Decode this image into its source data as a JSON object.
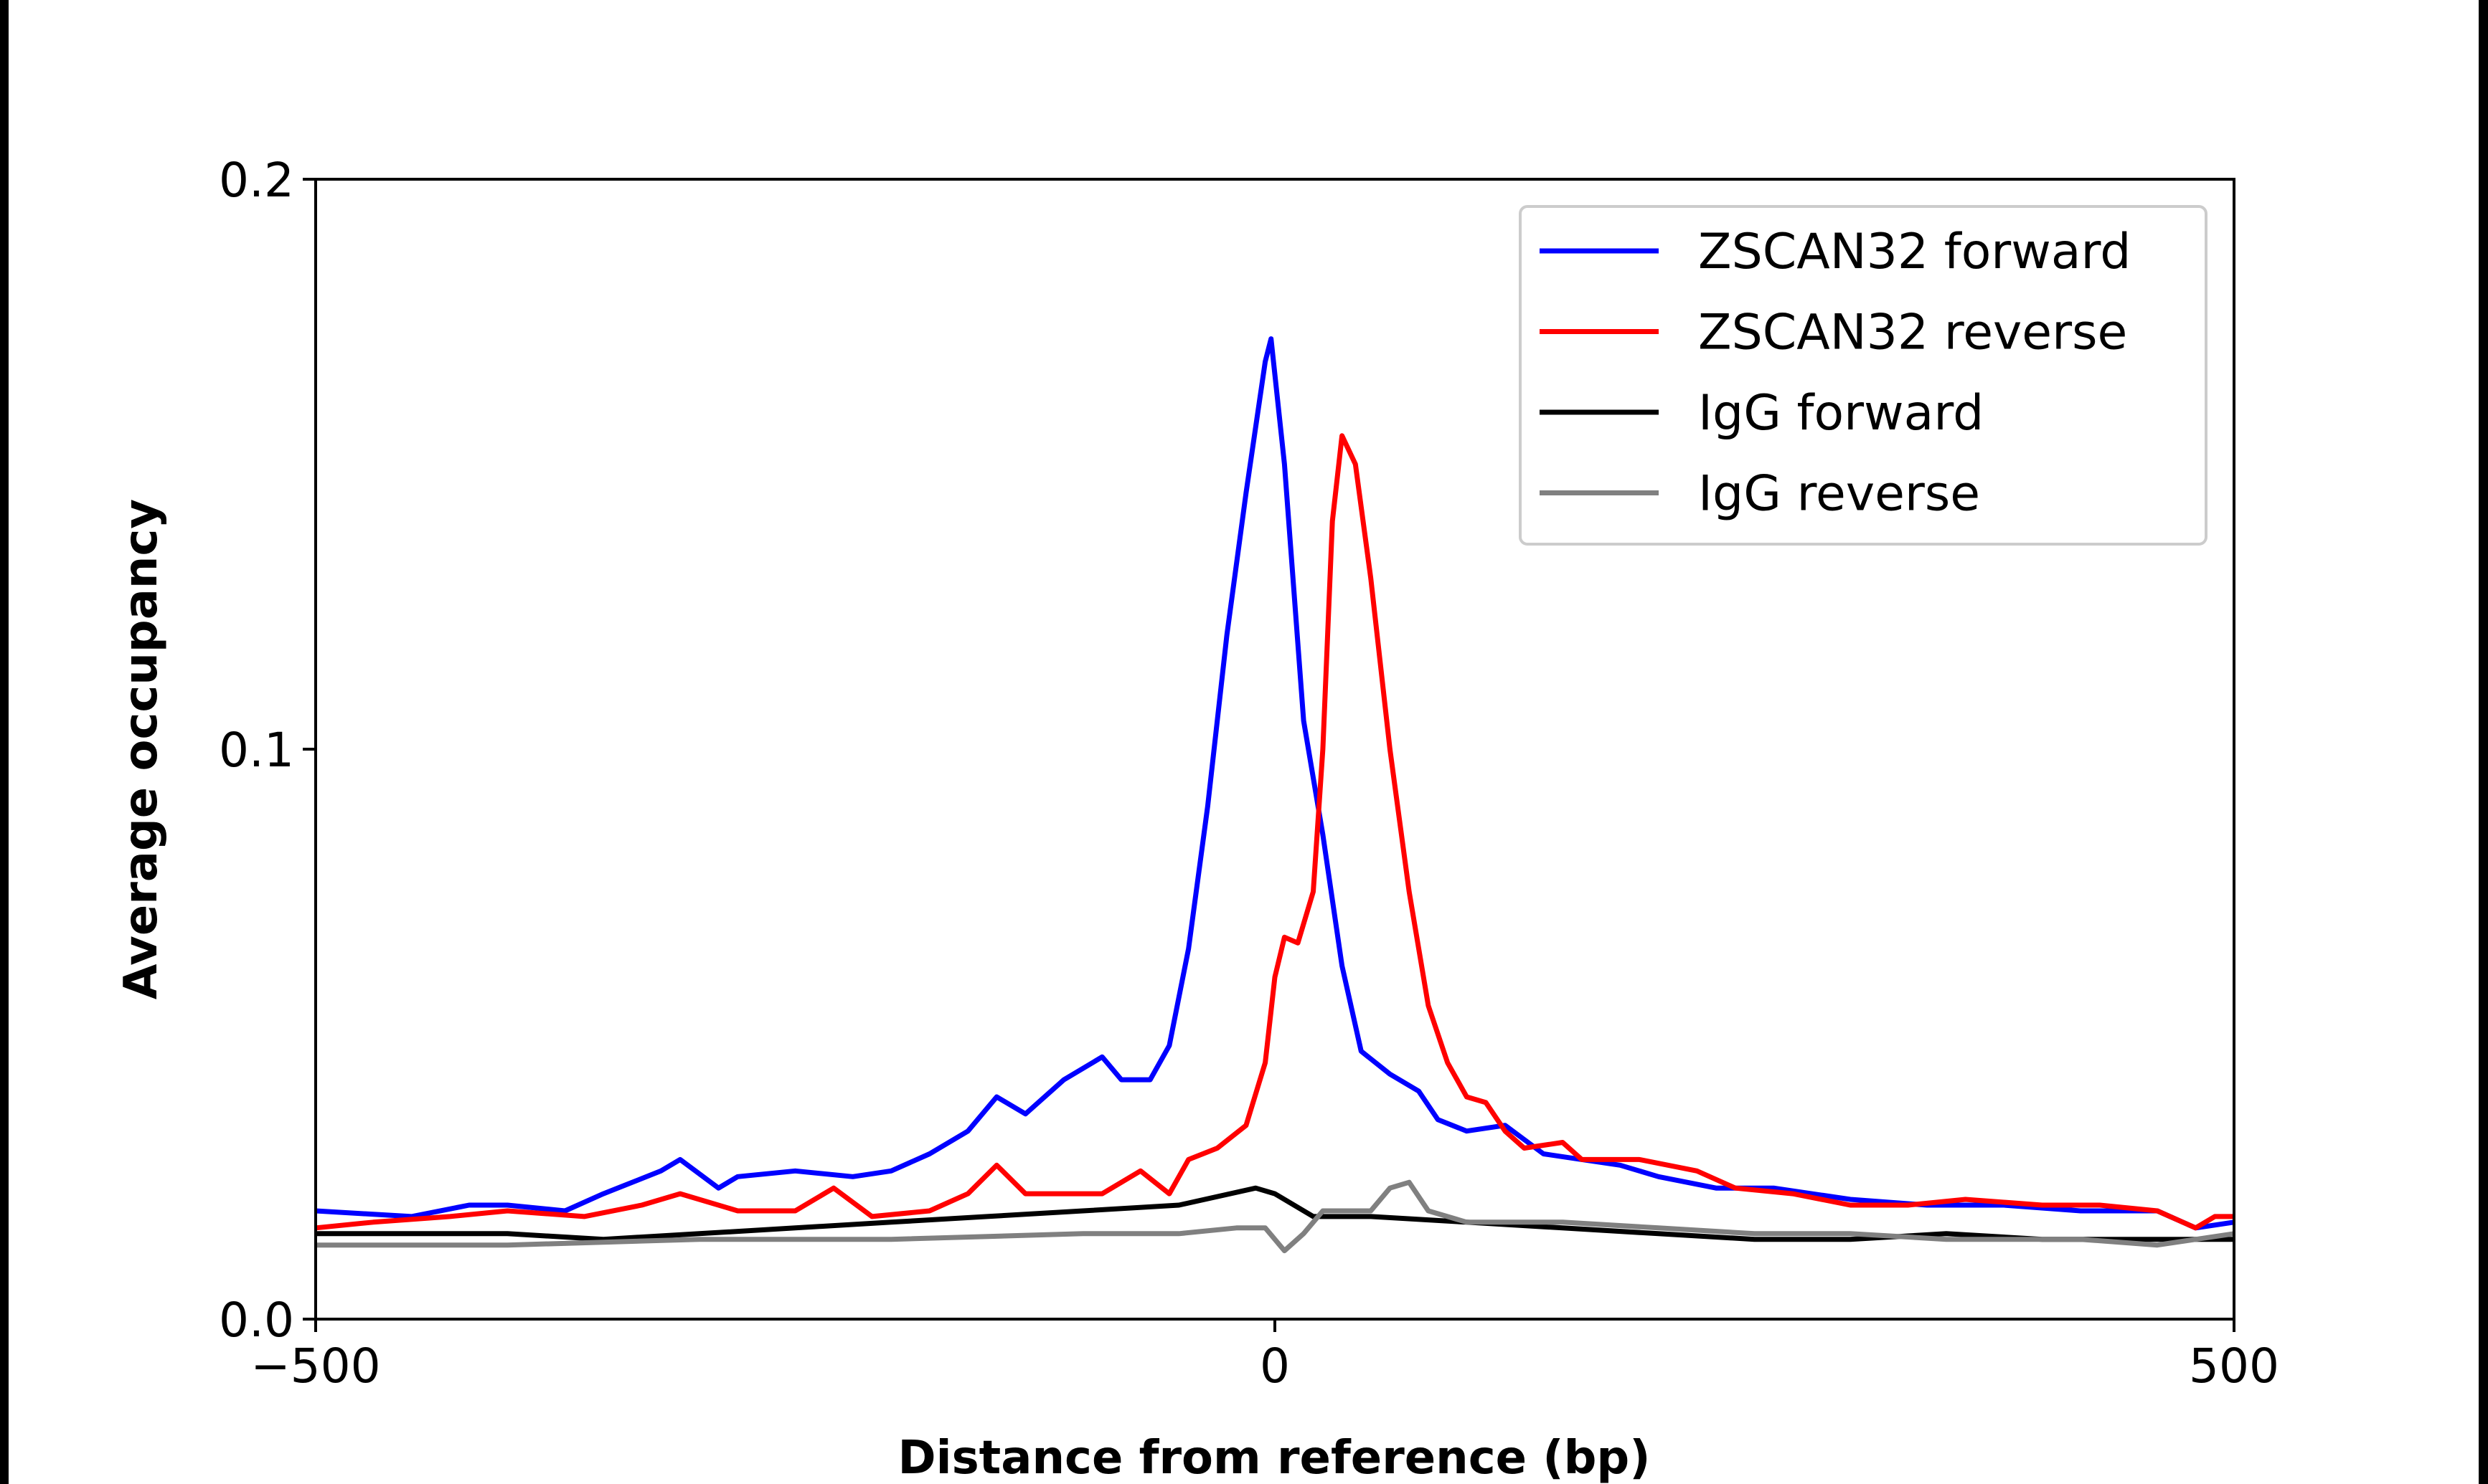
{
  "chart_data": {
    "type": "line",
    "title": "",
    "xlabel": "Distance from reference (bp)",
    "ylabel": "Average occupancy",
    "xlim": [
      -500,
      500
    ],
    "ylim": [
      0.0,
      0.2
    ],
    "xticks": [
      -500,
      0,
      500
    ],
    "xtick_labels": [
      "−500",
      "0",
      "500"
    ],
    "yticks": [
      0.0,
      0.1,
      0.2
    ],
    "ytick_labels": [
      "0.0",
      "0.1",
      "0.2"
    ],
    "grid": false,
    "legend_position": "top-right",
    "series": [
      {
        "name": "ZSCAN32 forward",
        "color": "#0000ff",
        "x": [
          -500,
          -450,
          -420,
          -400,
          -370,
          -350,
          -320,
          -310,
          -290,
          -280,
          -250,
          -220,
          -200,
          -180,
          -160,
          -145,
          -130,
          -110,
          -90,
          -80,
          -65,
          -55,
          -45,
          -35,
          -25,
          -15,
          -5,
          -2,
          5,
          15,
          25,
          35,
          45,
          60,
          75,
          85,
          100,
          120,
          140,
          160,
          180,
          200,
          230,
          260,
          300,
          340,
          380,
          420,
          460,
          480,
          500
        ],
        "y": [
          0.019,
          0.018,
          0.02,
          0.02,
          0.019,
          0.022,
          0.026,
          0.028,
          0.023,
          0.025,
          0.026,
          0.025,
          0.026,
          0.029,
          0.033,
          0.039,
          0.036,
          0.042,
          0.046,
          0.042,
          0.042,
          0.048,
          0.065,
          0.09,
          0.12,
          0.145,
          0.168,
          0.172,
          0.15,
          0.105,
          0.085,
          0.062,
          0.047,
          0.043,
          0.04,
          0.035,
          0.033,
          0.034,
          0.029,
          0.028,
          0.027,
          0.025,
          0.023,
          0.023,
          0.021,
          0.02,
          0.02,
          0.019,
          0.019,
          0.016,
          0.017
        ]
      },
      {
        "name": "ZSCAN32 reverse",
        "color": "#ff0000",
        "x": [
          -500,
          -470,
          -430,
          -400,
          -360,
          -330,
          -310,
          -280,
          -250,
          -230,
          -210,
          -180,
          -160,
          -145,
          -130,
          -110,
          -90,
          -70,
          -55,
          -45,
          -30,
          -15,
          -5,
          0,
          5,
          12,
          20,
          25,
          30,
          35,
          42,
          50,
          60,
          70,
          80,
          90,
          100,
          110,
          120,
          130,
          150,
          160,
          190,
          220,
          240,
          270,
          300,
          330,
          360,
          400,
          430,
          460,
          480,
          490,
          500
        ],
        "y": [
          0.016,
          0.017,
          0.018,
          0.019,
          0.018,
          0.02,
          0.022,
          0.019,
          0.019,
          0.023,
          0.018,
          0.019,
          0.022,
          0.027,
          0.022,
          0.022,
          0.022,
          0.026,
          0.022,
          0.028,
          0.03,
          0.034,
          0.045,
          0.06,
          0.067,
          0.066,
          0.075,
          0.1,
          0.14,
          0.155,
          0.15,
          0.13,
          0.1,
          0.075,
          0.055,
          0.045,
          0.039,
          0.038,
          0.033,
          0.03,
          0.031,
          0.028,
          0.028,
          0.026,
          0.023,
          0.022,
          0.02,
          0.02,
          0.021,
          0.02,
          0.02,
          0.019,
          0.016,
          0.018,
          0.018
        ]
      },
      {
        "name": "IgG forward",
        "color": "#000000",
        "x": [
          -500,
          -400,
          -350,
          -300,
          -250,
          -200,
          -150,
          -100,
          -50,
          -10,
          0,
          20,
          50,
          100,
          150,
          200,
          250,
          300,
          350,
          400,
          450,
          500
        ],
        "y": [
          0.015,
          0.015,
          0.014,
          0.015,
          0.016,
          0.017,
          0.018,
          0.019,
          0.02,
          0.023,
          0.022,
          0.018,
          0.018,
          0.017,
          0.016,
          0.015,
          0.014,
          0.014,
          0.015,
          0.014,
          0.014,
          0.014
        ]
      },
      {
        "name": "IgG reverse",
        "color": "#808080",
        "x": [
          -500,
          -400,
          -300,
          -200,
          -100,
          -50,
          -20,
          -5,
          5,
          15,
          25,
          50,
          60,
          70,
          80,
          100,
          150,
          200,
          250,
          300,
          350,
          420,
          460,
          500
        ],
        "y": [
          0.013,
          0.013,
          0.014,
          0.014,
          0.015,
          0.015,
          0.016,
          0.016,
          0.012,
          0.015,
          0.019,
          0.019,
          0.023,
          0.024,
          0.019,
          0.017,
          0.017,
          0.016,
          0.015,
          0.015,
          0.014,
          0.014,
          0.013,
          0.015
        ]
      }
    ]
  }
}
